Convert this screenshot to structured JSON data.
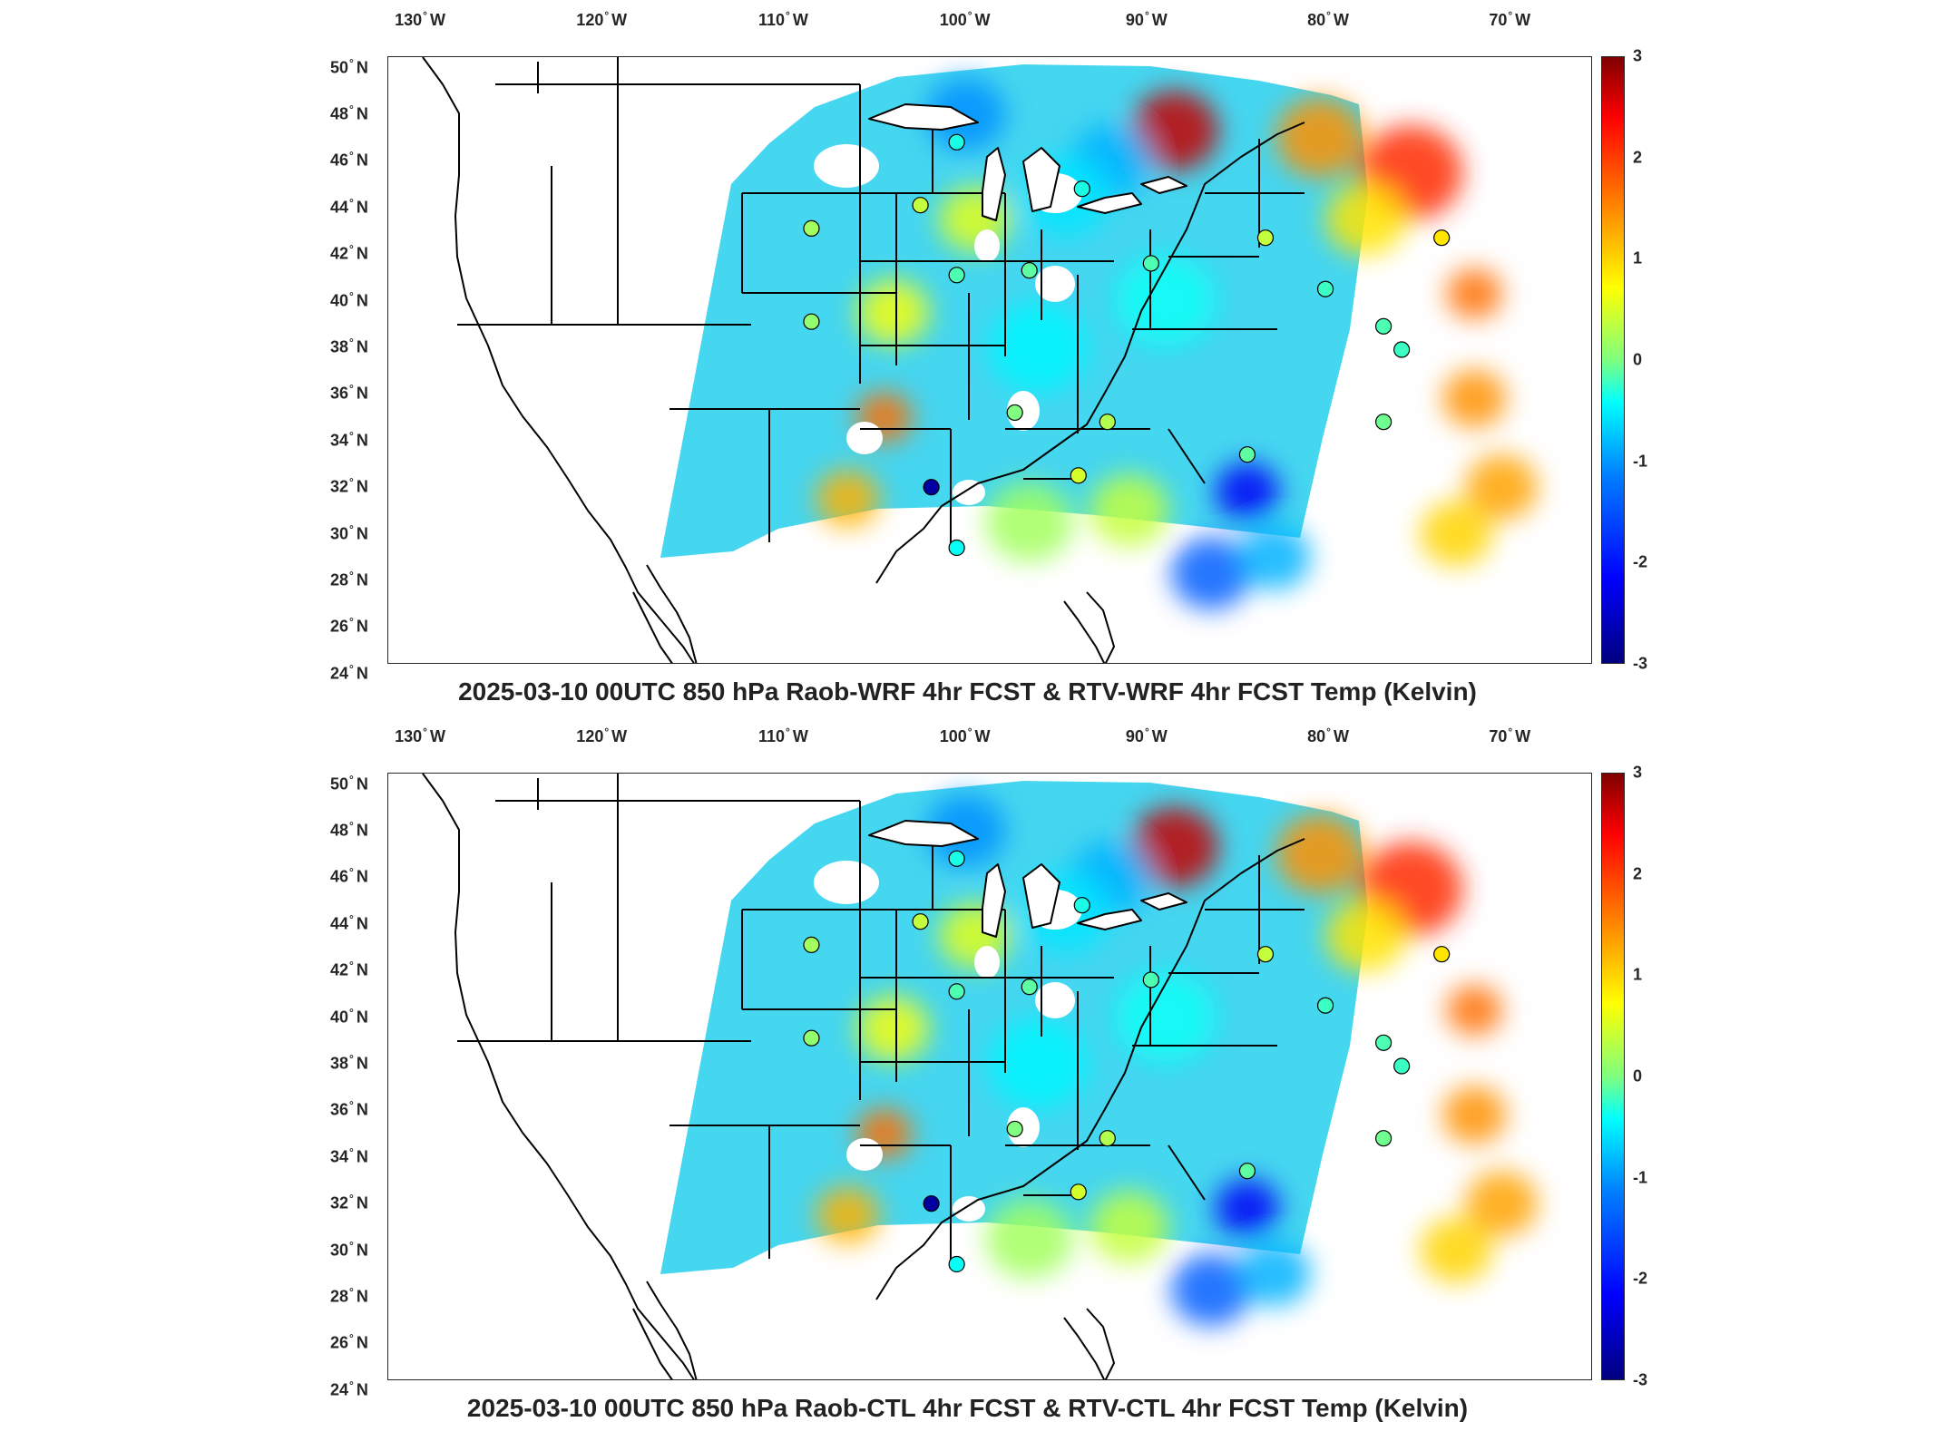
{
  "panels": [
    {
      "id": "top",
      "title": "2025-03-10 00UTC 850 hPa Raob-WRF 4hr FCST & RTV-WRF 4hr FCST Temp (Kelvin)"
    },
    {
      "id": "bottom",
      "title": "2025-03-10 00UTC 850 hPa Raob-CTL 4hr FCST & RTV-CTL 4hr FCST Temp (Kelvin)"
    }
  ],
  "map": {
    "lon_labels": [
      "130",
      "120",
      "110",
      "100",
      "90",
      "80",
      "70"
    ],
    "lon_hemisphere": "W",
    "lat_labels": [
      "50",
      "48",
      "46",
      "44",
      "42",
      "40",
      "38",
      "36",
      "34",
      "32",
      "30",
      "28",
      "26",
      "24"
    ],
    "lat_hemisphere": "N",
    "degree_symbol": "°"
  },
  "colorbar": {
    "ticks": [
      "3",
      "2",
      "1",
      "0",
      "-1",
      "-2",
      "-3"
    ],
    "colormap": "jet",
    "colors": [
      "#00007f",
      "#0000ff",
      "#007fff",
      "#00ffff",
      "#7fff7f",
      "#ffff00",
      "#ff7f00",
      "#ff0000",
      "#7f0000"
    ]
  },
  "raob_points": [
    {
      "lon": -108.5,
      "lat": 43.1,
      "value": 0.2
    },
    {
      "lon": -108.5,
      "lat": 39.1,
      "value": 0.1
    },
    {
      "lon": -102.5,
      "lat": 44.1,
      "value": 0.4
    },
    {
      "lon": -100.5,
      "lat": 46.8,
      "value": -0.6
    },
    {
      "lon": -100.5,
      "lat": 41.1,
      "value": -0.3
    },
    {
      "lon": -101.9,
      "lat": 32.0,
      "value": -2.8
    },
    {
      "lon": -100.5,
      "lat": 29.4,
      "value": -0.7
    },
    {
      "lon": -97.3,
      "lat": 35.2,
      "value": 0.0
    },
    {
      "lon": -96.5,
      "lat": 41.3,
      "value": -0.2
    },
    {
      "lon": -93.6,
      "lat": 44.8,
      "value": -0.6
    },
    {
      "lon": -92.2,
      "lat": 34.8,
      "value": 0.3
    },
    {
      "lon": -93.8,
      "lat": 32.5,
      "value": 0.5
    },
    {
      "lon": -89.8,
      "lat": 41.6,
      "value": -0.3
    },
    {
      "lon": -84.5,
      "lat": 33.4,
      "value": -0.2
    },
    {
      "lon": -83.5,
      "lat": 42.7,
      "value": 0.4
    },
    {
      "lon": -80.2,
      "lat": 40.5,
      "value": -0.4
    },
    {
      "lon": -77.0,
      "lat": 38.9,
      "value": -0.3
    },
    {
      "lon": -77.0,
      "lat": 34.8,
      "value": -0.1
    },
    {
      "lon": -73.8,
      "lat": 42.7,
      "value": 0.9
    },
    {
      "lon": -76.0,
      "lat": 37.9,
      "value": -0.4
    }
  ],
  "anomaly_regions": [
    {
      "lon": -88.5,
      "lat": 47.3,
      "value": 2.6,
      "r": 2.2
    },
    {
      "lon": -75.5,
      "lat": 45.5,
      "value": 2.0,
      "r": 2.6
    },
    {
      "lon": -80.5,
      "lat": 47.0,
      "value": 1.4,
      "r": 2.2
    },
    {
      "lon": -72.0,
      "lat": 40.3,
      "value": 1.6,
      "r": 1.4
    },
    {
      "lon": -72.0,
      "lat": 35.8,
      "value": 1.4,
      "r": 1.6
    },
    {
      "lon": -70.5,
      "lat": 32.0,
      "value": 1.3,
      "r": 1.8
    },
    {
      "lon": -73.0,
      "lat": 30.0,
      "value": 1.0,
      "r": 1.8
    },
    {
      "lon": -84.5,
      "lat": 31.8,
      "value": -2.3,
      "r": 1.6
    },
    {
      "lon": -86.5,
      "lat": 28.3,
      "value": -1.7,
      "r": 2.0
    },
    {
      "lon": -83.0,
      "lat": 29.0,
      "value": -1.2,
      "r": 1.8
    },
    {
      "lon": -92.0,
      "lat": 46.0,
      "value": -1.2,
      "r": 2.0
    },
    {
      "lon": -100.0,
      "lat": 48.0,
      "value": -1.4,
      "r": 2.0
    },
    {
      "lon": -94.5,
      "lat": 44.5,
      "value": -0.9,
      "r": 2.2
    },
    {
      "lon": -96.0,
      "lat": 38.0,
      "value": -0.8,
      "r": 2.5
    },
    {
      "lon": -89.0,
      "lat": 40.0,
      "value": -0.7,
      "r": 2.5
    },
    {
      "lon": -104.0,
      "lat": 39.5,
      "value": 0.7,
      "r": 1.8
    },
    {
      "lon": -104.5,
      "lat": 35.0,
      "value": 1.6,
      "r": 1.4
    },
    {
      "lon": -106.5,
      "lat": 31.5,
      "value": 1.2,
      "r": 1.6
    },
    {
      "lon": -91.0,
      "lat": 31.0,
      "value": 0.4,
      "r": 2.0
    },
    {
      "lon": -96.5,
      "lat": 30.5,
      "value": 0.2,
      "r": 2.2
    },
    {
      "lon": -78.0,
      "lat": 43.5,
      "value": 0.9,
      "r": 2.0
    },
    {
      "lon": -99.5,
      "lat": 43.5,
      "value": 0.6,
      "r": 1.8
    }
  ]
}
